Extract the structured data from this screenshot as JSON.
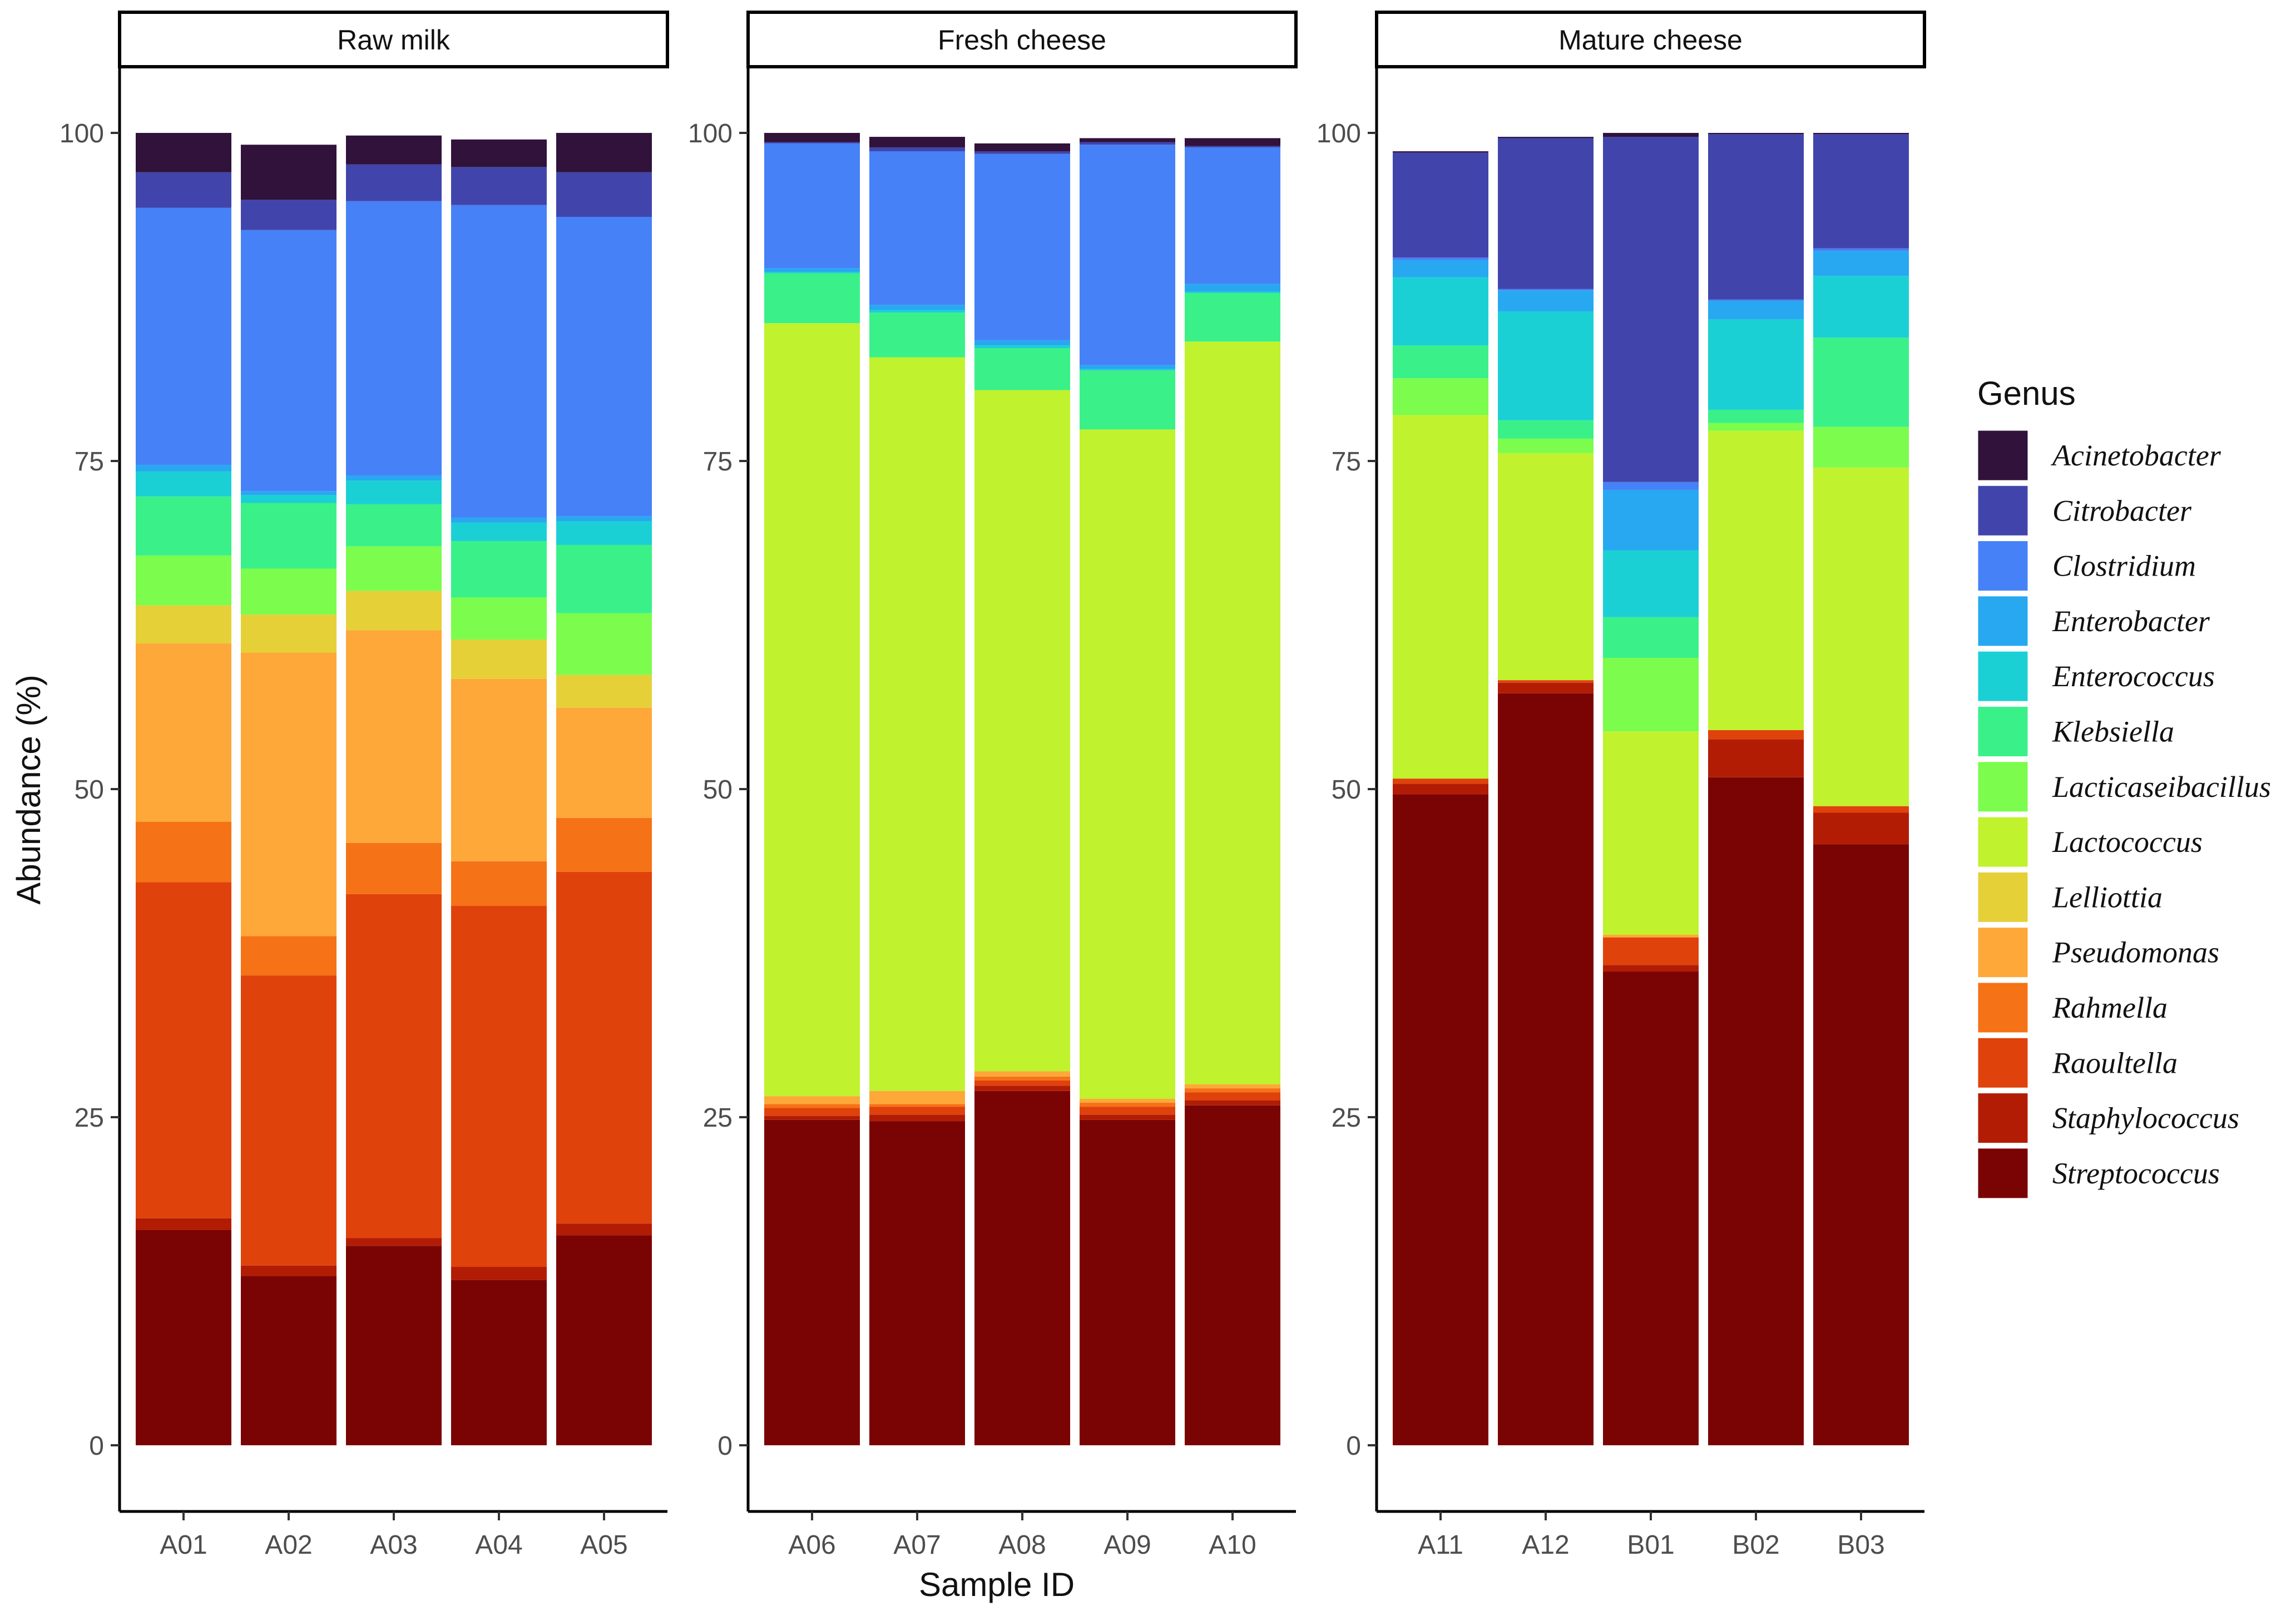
{
  "chart_data": {
    "type": "bar",
    "stacked": true,
    "facets": [
      "Raw milk",
      "Fresh cheese",
      "Mature cheese"
    ],
    "xlabel": "Sample ID",
    "ylabel": "Abundance (%)",
    "ylim": [
      0,
      100
    ],
    "yticks": [
      0,
      25,
      50,
      75,
      100
    ],
    "legend": {
      "title": "Genus",
      "position": "right"
    },
    "genera": [
      "Acinetobacter",
      "Citrobacter",
      "Clostridium",
      "Enterobacter",
      "Enterococcus",
      "Klebsiella",
      "Lacticaseibacillus",
      "Lactococcus",
      "Lelliottia",
      "Pseudomonas",
      "Rahmella",
      "Raoultella",
      "Staphylococcus",
      "Streptococcus"
    ],
    "colors": [
      "#30123b",
      "#4145ab",
      "#4681f7",
      "#28a8f1",
      "#1bd0d5",
      "#3af189",
      "#7cfc4d",
      "#c0f22e",
      "#e6d038",
      "#fda839",
      "#f57217",
      "#e0420c",
      "#b21c04",
      "#7a0403"
    ],
    "samples": [
      {
        "id": "A01",
        "facet": "Raw milk",
        "values": [
          3.0,
          2.7,
          19.6,
          0.5,
          1.9,
          4.5,
          3.8,
          0,
          2.9,
          13.6,
          4.6,
          25.6,
          0.9,
          16.4
        ]
      },
      {
        "id": "A02",
        "facet": "Raw milk",
        "values": [
          4.2,
          2.3,
          19.9,
          0.3,
          0.6,
          5.0,
          3.5,
          0,
          2.9,
          21.6,
          3.0,
          22.1,
          0.8,
          12.9
        ]
      },
      {
        "id": "A03",
        "facet": "Raw milk",
        "values": [
          2.2,
          2.8,
          20.9,
          0.4,
          1.8,
          3.2,
          3.4,
          0,
          3.0,
          16.2,
          3.9,
          26.2,
          0.6,
          15.2
        ]
      },
      {
        "id": "A04",
        "facet": "Raw milk",
        "values": [
          2.1,
          2.9,
          23.8,
          0.4,
          1.4,
          4.3,
          3.2,
          0,
          3.0,
          13.9,
          3.4,
          27.5,
          1.0,
          12.6
        ]
      },
      {
        "id": "A05",
        "facet": "Raw milk",
        "values": [
          3.0,
          3.4,
          22.8,
          0.4,
          1.8,
          5.2,
          4.7,
          0,
          2.5,
          8.4,
          4.1,
          26.8,
          0.9,
          16.0
        ]
      },
      {
        "id": "A06",
        "facet": "Fresh cheese",
        "values": [
          0.7,
          0.1,
          9.5,
          0.3,
          0.1,
          3.8,
          0,
          58.9,
          0,
          0.6,
          0.3,
          0.6,
          0.3,
          24.8
        ]
      },
      {
        "id": "A07",
        "facet": "Fresh cheese",
        "values": [
          0.8,
          0.3,
          11.7,
          0.4,
          0.2,
          3.4,
          0,
          55.9,
          0,
          1.0,
          0.2,
          0.6,
          0.5,
          24.7
        ]
      },
      {
        "id": "A08",
        "facet": "Fresh cheese",
        "values": [
          0.6,
          0.2,
          14.2,
          0.4,
          0.2,
          3.2,
          0,
          51.9,
          0,
          0.4,
          0.3,
          0.4,
          0.4,
          27.0
        ]
      },
      {
        "id": "A09",
        "facet": "Fresh cheese",
        "values": [
          0.3,
          0.2,
          16.8,
          0.3,
          0.1,
          4.5,
          0,
          51.0,
          0,
          0.3,
          0.3,
          0.6,
          0.4,
          24.8
        ]
      },
      {
        "id": "A10",
        "facet": "Fresh cheese",
        "values": [
          0.6,
          0.1,
          10.4,
          0.6,
          0.1,
          3.7,
          0,
          56.6,
          0,
          0.3,
          0.3,
          0.6,
          0.4,
          25.9
        ]
      },
      {
        "id": "A11",
        "facet": "Mature cheese",
        "values": [
          0.1,
          8.0,
          0.2,
          1.3,
          5.2,
          2.5,
          2.8,
          27.7,
          0,
          0,
          0,
          0.4,
          0.8,
          49.6
        ]
      },
      {
        "id": "A12",
        "facet": "Mature cheese",
        "values": [
          0.1,
          11.5,
          0.1,
          1.6,
          8.3,
          1.4,
          1.1,
          17.3,
          0,
          0,
          0,
          0.2,
          0.8,
          57.3
        ]
      },
      {
        "id": "B01",
        "facet": "Mature cheese",
        "values": [
          0.3,
          26.3,
          0.6,
          4.6,
          5.1,
          3.1,
          5.6,
          15.5,
          0,
          0.2,
          0,
          2.1,
          0.5,
          36.1
        ]
      },
      {
        "id": "B02",
        "facet": "Mature cheese",
        "values": [
          0.1,
          12.6,
          0.1,
          1.4,
          6.9,
          1.0,
          0.6,
          22.8,
          0,
          0,
          0,
          0.7,
          2.9,
          50.9
        ]
      },
      {
        "id": "B03",
        "facet": "Mature cheese",
        "values": [
          0.1,
          8.7,
          0.2,
          1.9,
          4.7,
          6.8,
          3.1,
          25.8,
          0,
          0,
          0,
          0.5,
          2.4,
          45.8
        ]
      }
    ]
  }
}
